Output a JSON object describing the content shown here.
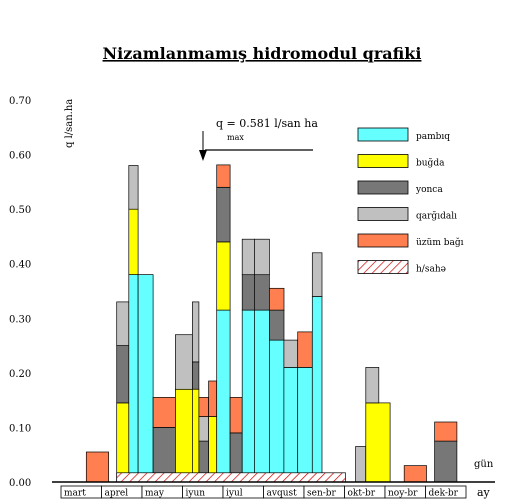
{
  "chart_data": {
    "type": "bar",
    "title": "Nizamlanmamış hidromodul qrafiki",
    "ylabel": "q   l/san.ha",
    "xlabel_days": "gün",
    "xlabel_months": "ay",
    "ylim": [
      0,
      0.7
    ],
    "yticks": [
      "0.00",
      "0.10",
      "0.20",
      "0.30",
      "0.40",
      "0.50",
      "0.60",
      "0.70"
    ],
    "months": [
      "mart",
      "aprel",
      "may",
      "iyun",
      "iyul",
      "avqust",
      "sen-br",
      "okt-br",
      "noy-br",
      "dek-br"
    ],
    "annotation": {
      "main": "q    = 0.581 l/san ha",
      "sub": "max",
      "value": 0.581
    },
    "colors": {
      "pambiq": "#66ffff",
      "bugda": "#ffff00",
      "yonca": "#777777",
      "qargidali": "#c0c0c0",
      "uzum": "#ff7f50",
      "hatch": "#cc0000",
      "border": "#000000"
    },
    "legend": [
      {
        "key": "pambiq",
        "label": "pambıq",
        "pattern": "solid"
      },
      {
        "key": "bugda",
        "label": "buğda",
        "pattern": "solid"
      },
      {
        "key": "yonca",
        "label": "yonca",
        "pattern": "solid"
      },
      {
        "key": "qargidali",
        "label": "qarğıdalı",
        "pattern": "solid"
      },
      {
        "key": "uzum",
        "label": "üzüm bağı",
        "pattern": "solid"
      },
      {
        "key": "hatch",
        "label": "h/sahə",
        "pattern": "hatch"
      }
    ],
    "area_band": {
      "start": 1.35,
      "end": 7.0,
      "top": 0.015
    },
    "segments": [
      {
        "s": 0.6,
        "e": 1.15,
        "b": 0.0,
        "t": 0.055,
        "k": "uzum"
      },
      {
        "s": 1.35,
        "e": 1.65,
        "b": 0.0,
        "t": 0.145,
        "k": "bugda"
      },
      {
        "s": 1.35,
        "e": 1.65,
        "b": 0.145,
        "t": 0.25,
        "k": "yonca"
      },
      {
        "s": 1.35,
        "e": 1.65,
        "b": 0.25,
        "t": 0.33,
        "k": "qargidali"
      },
      {
        "s": 1.65,
        "e": 1.88,
        "b": 0.0,
        "t": 0.38,
        "k": "pambiq"
      },
      {
        "s": 1.65,
        "e": 1.88,
        "b": 0.38,
        "t": 0.5,
        "k": "bugda"
      },
      {
        "s": 1.65,
        "e": 1.88,
        "b": 0.5,
        "t": 0.58,
        "k": "qargidali"
      },
      {
        "s": 1.88,
        "e": 2.25,
        "b": 0.0,
        "t": 0.38,
        "k": "pambiq"
      },
      {
        "s": 2.25,
        "e": 2.8,
        "b": 0.0,
        "t": 0.1,
        "k": "yonca"
      },
      {
        "s": 2.25,
        "e": 2.8,
        "b": 0.1,
        "t": 0.155,
        "k": "uzum"
      },
      {
        "s": 2.8,
        "e": 3.22,
        "b": 0.0,
        "t": 0.17,
        "k": "bugda"
      },
      {
        "s": 2.8,
        "e": 3.22,
        "b": 0.17,
        "t": 0.27,
        "k": "qargidali"
      },
      {
        "s": 3.22,
        "e": 3.38,
        "b": 0.0,
        "t": 0.17,
        "k": "bugda"
      },
      {
        "s": 3.22,
        "e": 3.38,
        "b": 0.17,
        "t": 0.22,
        "k": "yonca"
      },
      {
        "s": 3.22,
        "e": 3.38,
        "b": 0.22,
        "t": 0.33,
        "k": "qargidali"
      },
      {
        "s": 3.38,
        "e": 3.62,
        "b": 0.0,
        "t": 0.075,
        "k": "yonca"
      },
      {
        "s": 3.38,
        "e": 3.62,
        "b": 0.075,
        "t": 0.12,
        "k": "qargidali"
      },
      {
        "s": 3.38,
        "e": 3.62,
        "b": 0.12,
        "t": 0.155,
        "k": "uzum"
      },
      {
        "s": 3.62,
        "e": 3.82,
        "b": 0.0,
        "t": 0.12,
        "k": "bugda"
      },
      {
        "s": 3.62,
        "e": 3.82,
        "b": 0.12,
        "t": 0.185,
        "k": "uzum"
      },
      {
        "s": 3.82,
        "e": 4.15,
        "b": 0.0,
        "t": 0.315,
        "k": "pambiq"
      },
      {
        "s": 3.82,
        "e": 4.15,
        "b": 0.315,
        "t": 0.44,
        "k": "bugda"
      },
      {
        "s": 3.82,
        "e": 4.15,
        "b": 0.44,
        "t": 0.54,
        "k": "yonca"
      },
      {
        "s": 3.82,
        "e": 4.15,
        "b": 0.54,
        "t": 0.581,
        "k": "uzum"
      },
      {
        "s": 4.15,
        "e": 4.45,
        "b": 0.0,
        "t": 0.09,
        "k": "yonca"
      },
      {
        "s": 4.15,
        "e": 4.45,
        "b": 0.09,
        "t": 0.155,
        "k": "uzum"
      },
      {
        "s": 4.45,
        "e": 4.75,
        "b": 0.0,
        "t": 0.315,
        "k": "pambiq"
      },
      {
        "s": 4.45,
        "e": 4.75,
        "b": 0.315,
        "t": 0.38,
        "k": "yonca"
      },
      {
        "s": 4.45,
        "e": 4.75,
        "b": 0.38,
        "t": 0.445,
        "k": "qargidali"
      },
      {
        "s": 4.75,
        "e": 5.12,
        "b": 0.0,
        "t": 0.315,
        "k": "pambiq"
      },
      {
        "s": 4.75,
        "e": 5.12,
        "b": 0.315,
        "t": 0.38,
        "k": "yonca"
      },
      {
        "s": 4.75,
        "e": 5.12,
        "b": 0.38,
        "t": 0.445,
        "k": "qargidali"
      },
      {
        "s": 5.12,
        "e": 5.48,
        "b": 0.0,
        "t": 0.26,
        "k": "pambiq"
      },
      {
        "s": 5.12,
        "e": 5.48,
        "b": 0.26,
        "t": 0.315,
        "k": "yonca"
      },
      {
        "s": 5.12,
        "e": 5.48,
        "b": 0.315,
        "t": 0.355,
        "k": "uzum"
      },
      {
        "s": 5.48,
        "e": 5.82,
        "b": 0.0,
        "t": 0.21,
        "k": "pambiq"
      },
      {
        "s": 5.48,
        "e": 5.82,
        "b": 0.21,
        "t": 0.26,
        "k": "qargidali"
      },
      {
        "s": 5.82,
        "e": 6.18,
        "b": 0.0,
        "t": 0.21,
        "k": "pambiq"
      },
      {
        "s": 5.82,
        "e": 6.18,
        "b": 0.21,
        "t": 0.275,
        "k": "uzum"
      },
      {
        "s": 6.18,
        "e": 6.42,
        "b": 0.0,
        "t": 0.34,
        "k": "pambiq"
      },
      {
        "s": 6.18,
        "e": 6.42,
        "b": 0.34,
        "t": 0.42,
        "k": "qargidali"
      },
      {
        "s": 7.25,
        "e": 7.5,
        "b": 0.0,
        "t": 0.065,
        "k": "qargidali"
      },
      {
        "s": 7.5,
        "e": 8.1,
        "b": 0.0,
        "t": 0.145,
        "k": "bugda"
      },
      {
        "s": 7.5,
        "e": 7.82,
        "b": 0.145,
        "t": 0.21,
        "k": "qargidali"
      },
      {
        "s": 8.45,
        "e": 9.0,
        "b": 0.0,
        "t": 0.03,
        "k": "uzum"
      },
      {
        "s": 9.2,
        "e": 9.75,
        "b": 0.0,
        "t": 0.075,
        "k": "yonca"
      },
      {
        "s": 9.2,
        "e": 9.75,
        "b": 0.075,
        "t": 0.11,
        "k": "uzum"
      }
    ]
  }
}
